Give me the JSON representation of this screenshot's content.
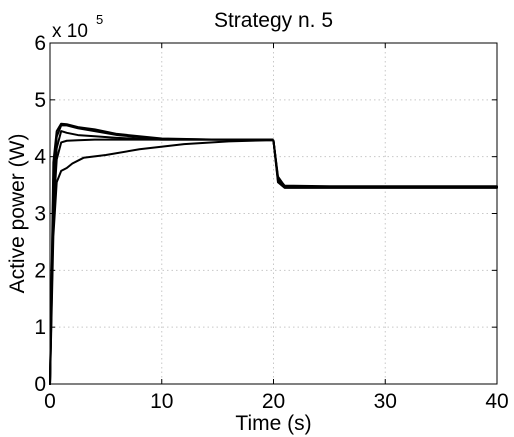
{
  "chart_data": {
    "type": "line",
    "title": "Strategy n. 5",
    "xlabel": "Time (s)",
    "ylabel": "Active power (W)",
    "y_multiplier_base": "x 10",
    "y_multiplier_exp": "5",
    "xlim": [
      0,
      40
    ],
    "ylim": [
      0,
      6
    ],
    "x_ticks": [
      0,
      10,
      20,
      30,
      40
    ],
    "y_ticks": [
      0,
      1,
      2,
      3,
      4,
      5,
      6
    ],
    "x_tick_labels": [
      "0",
      "10",
      "20",
      "30",
      "40"
    ],
    "y_tick_labels": [
      "0",
      "1",
      "2",
      "3",
      "4",
      "5",
      "6"
    ],
    "grid": true,
    "y_unit_scale": 100000,
    "series": [
      {
        "x": [
          0,
          0.3,
          0.6,
          1.0,
          1.5,
          2.5,
          4,
          6,
          10,
          15,
          19.9,
          20.0,
          20.4,
          21,
          25,
          30,
          35,
          40
        ],
        "values": [
          0,
          3.9,
          4.45,
          4.58,
          4.57,
          4.52,
          4.48,
          4.4,
          4.32,
          4.3,
          4.3,
          4.28,
          3.65,
          3.48,
          3.47,
          3.47,
          3.47,
          3.47
        ]
      },
      {
        "x": [
          0,
          0.3,
          0.6,
          1.0,
          1.5,
          2.5,
          4,
          6,
          10,
          15,
          19.9,
          20.0,
          20.4,
          21,
          25,
          30,
          35,
          40
        ],
        "values": [
          0,
          3.6,
          4.35,
          4.55,
          4.55,
          4.5,
          4.45,
          4.38,
          4.31,
          4.3,
          4.3,
          4.28,
          3.6,
          3.47,
          3.46,
          3.46,
          3.46,
          3.46
        ]
      },
      {
        "x": [
          0,
          0.3,
          0.6,
          1.0,
          1.5,
          2.5,
          4,
          6,
          10,
          15,
          19.9,
          20.0,
          20.4,
          21,
          25,
          30,
          35,
          40
        ],
        "values": [
          0,
          3.3,
          4.15,
          4.45,
          4.42,
          4.38,
          4.36,
          4.33,
          4.3,
          4.3,
          4.3,
          4.28,
          3.62,
          3.49,
          3.48,
          3.48,
          3.48,
          3.48
        ]
      },
      {
        "x": [
          0,
          0.3,
          0.6,
          1.0,
          1.5,
          2.5,
          4,
          6,
          10,
          15,
          19.9,
          20.0,
          20.4,
          21,
          25,
          30,
          35,
          40
        ],
        "values": [
          0,
          3.0,
          3.95,
          4.25,
          4.28,
          4.29,
          4.3,
          4.3,
          4.3,
          4.3,
          4.3,
          4.28,
          3.58,
          3.46,
          3.46,
          3.46,
          3.46,
          3.46
        ]
      },
      {
        "x": [
          0,
          0.3,
          0.6,
          1.0,
          1.5,
          2.0,
          3,
          5,
          8,
          12,
          16,
          19.9,
          20.0,
          20.4,
          21,
          25,
          30,
          35,
          40
        ],
        "values": [
          0,
          2.6,
          3.55,
          3.75,
          3.8,
          3.88,
          3.98,
          4.03,
          4.13,
          4.22,
          4.27,
          4.29,
          4.27,
          3.55,
          3.45,
          3.45,
          3.45,
          3.45,
          3.45
        ]
      }
    ]
  }
}
